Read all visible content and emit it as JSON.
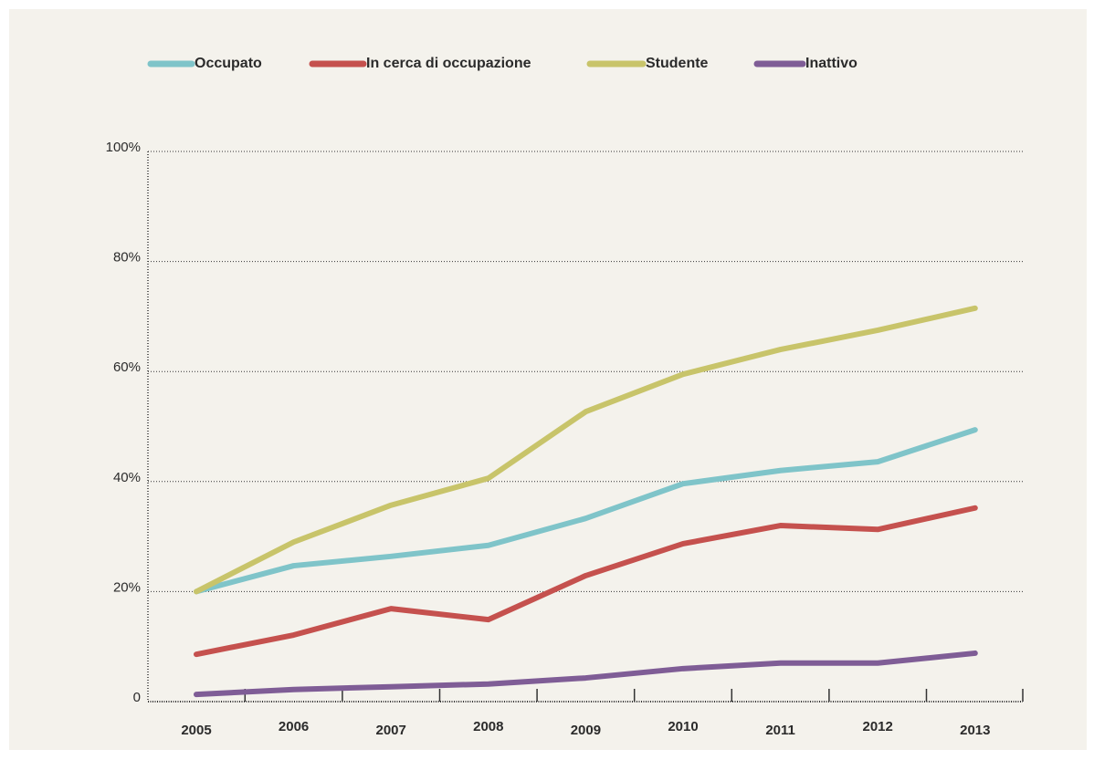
{
  "chart_data": {
    "type": "line",
    "categories": [
      "2005",
      "2006",
      "2007",
      "2008",
      "2009",
      "2010",
      "2011",
      "2012",
      "2013"
    ],
    "series": [
      {
        "name": "Occupato",
        "color": "#7fc4c9",
        "values": [
          20,
          24.7,
          26.4,
          28.4,
          33.3,
          39.6,
          42,
          43.6,
          49.4
        ]
      },
      {
        "name": "In cerca di occupazione",
        "color": "#c5514e",
        "values": [
          8.6,
          12.1,
          16.9,
          14.9,
          22.9,
          28.7,
          32,
          31.3,
          35.2
        ]
      },
      {
        "name": "Studente",
        "color": "#c8c46a",
        "values": [
          20,
          29,
          35.7,
          40.6,
          52.7,
          59.5,
          64,
          67.5,
          71.5
        ]
      },
      {
        "name": "Inattivo",
        "color": "#7f5d96",
        "values": [
          1.3,
          2.2,
          2.7,
          3.2,
          4.3,
          6,
          7,
          7,
          8.8
        ]
      }
    ],
    "ylim": [
      0,
      100
    ],
    "yticks": [
      0,
      {
        "value": 20,
        "label": "20%"
      },
      {
        "value": 40,
        "label": "40%"
      },
      {
        "value": 60,
        "label": "60%"
      },
      {
        "value": 80,
        "label": "80%"
      },
      {
        "value": 100,
        "label": "100%"
      }
    ],
    "grid": true
  }
}
